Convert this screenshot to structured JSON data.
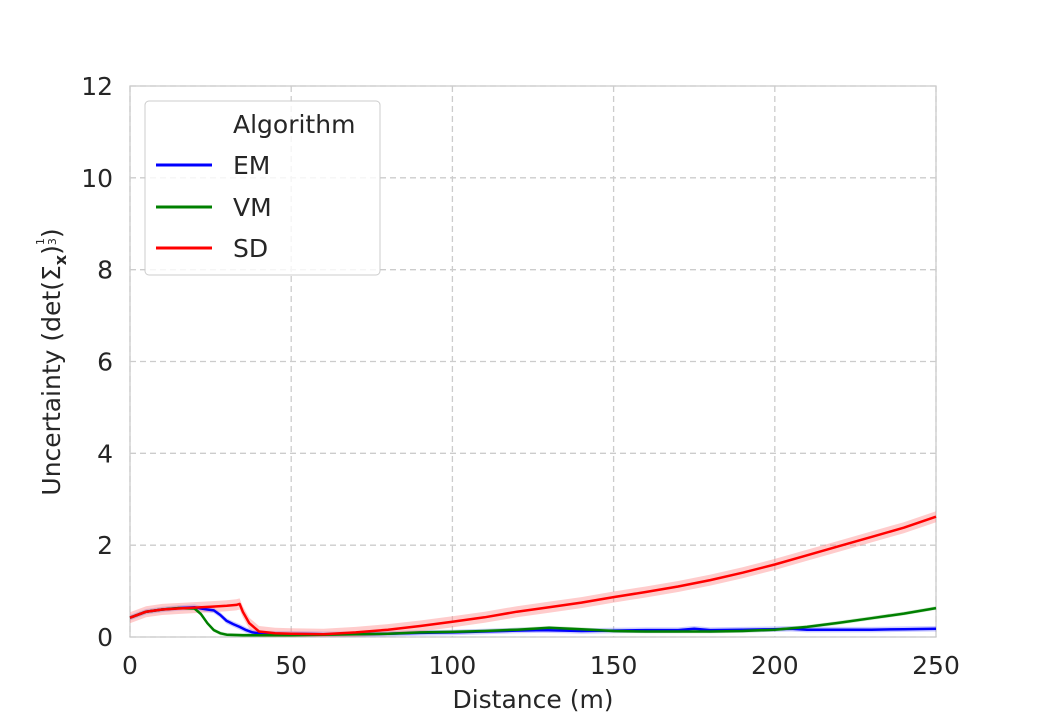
{
  "chart_data": {
    "type": "line",
    "xlabel": "Distance (m)",
    "ylabel_main": "Uncertainty (det(Σ",
    "ylabel_sub": "x",
    "ylabel_after": ")",
    "ylabel_exp_num": "1",
    "ylabel_exp_den": "3",
    "ylabel_close": ")",
    "xlim": [
      0,
      250
    ],
    "ylim": [
      0,
      12
    ],
    "xticks": [
      0,
      50,
      100,
      150,
      200,
      250
    ],
    "yticks": [
      0,
      2,
      4,
      6,
      8,
      10,
      12
    ],
    "grid": true,
    "legend": {
      "title": "Algorithm",
      "placement": "top-left"
    },
    "series": [
      {
        "name": "EM",
        "color": "#0000ff",
        "band_color": "#8080ff",
        "x": [
          0,
          5,
          10,
          15,
          20,
          22,
          24,
          26,
          28,
          30,
          32,
          34,
          36,
          38,
          40,
          45,
          50,
          60,
          70,
          80,
          90,
          100,
          110,
          120,
          128,
          135,
          140,
          150,
          160,
          170,
          175,
          180,
          190,
          200,
          205,
          210,
          220,
          230,
          240,
          250
        ],
        "y": [
          0.42,
          0.55,
          0.6,
          0.63,
          0.65,
          0.62,
          0.6,
          0.58,
          0.48,
          0.35,
          0.28,
          0.22,
          0.15,
          0.1,
          0.08,
          0.07,
          0.07,
          0.06,
          0.06,
          0.07,
          0.09,
          0.1,
          0.12,
          0.14,
          0.15,
          0.14,
          0.13,
          0.14,
          0.15,
          0.15,
          0.18,
          0.15,
          0.16,
          0.17,
          0.18,
          0.16,
          0.16,
          0.16,
          0.17,
          0.18
        ],
        "band": 0.06
      },
      {
        "name": "VM",
        "color": "#008000",
        "band_color": "#80c080",
        "x": [
          0,
          5,
          10,
          15,
          20,
          22,
          24,
          26,
          28,
          30,
          35,
          40,
          50,
          60,
          70,
          80,
          90,
          100,
          110,
          120,
          130,
          140,
          150,
          160,
          170,
          180,
          190,
          200,
          210,
          220,
          230,
          240,
          250
        ],
        "y": [
          0.42,
          0.55,
          0.6,
          0.63,
          0.62,
          0.5,
          0.3,
          0.15,
          0.08,
          0.05,
          0.04,
          0.04,
          0.04,
          0.05,
          0.06,
          0.07,
          0.1,
          0.11,
          0.13,
          0.16,
          0.2,
          0.17,
          0.13,
          0.12,
          0.12,
          0.12,
          0.13,
          0.16,
          0.22,
          0.31,
          0.41,
          0.51,
          0.63
        ],
        "band": 0.04
      },
      {
        "name": "SD",
        "color": "#ff0000",
        "band_color": "#ff8080",
        "x": [
          0,
          5,
          10,
          15,
          20,
          25,
          30,
          33,
          34,
          35,
          37,
          40,
          45,
          50,
          60,
          70,
          80,
          90,
          100,
          110,
          120,
          130,
          140,
          150,
          160,
          170,
          180,
          190,
          200,
          210,
          220,
          230,
          240,
          250
        ],
        "y": [
          0.42,
          0.55,
          0.6,
          0.62,
          0.64,
          0.66,
          0.68,
          0.7,
          0.72,
          0.55,
          0.3,
          0.12,
          0.08,
          0.07,
          0.06,
          0.1,
          0.16,
          0.24,
          0.33,
          0.43,
          0.55,
          0.65,
          0.75,
          0.87,
          0.98,
          1.1,
          1.24,
          1.4,
          1.58,
          1.78,
          1.98,
          2.18,
          2.38,
          2.62
        ],
        "band": 0.12
      }
    ]
  }
}
